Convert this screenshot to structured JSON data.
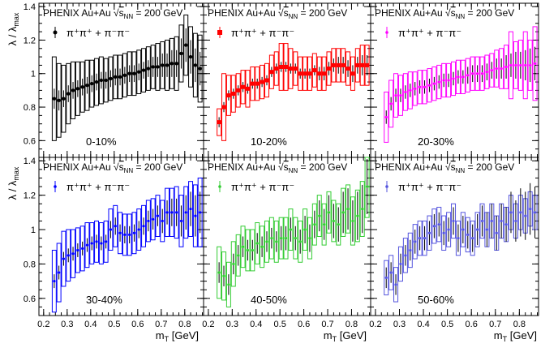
{
  "y_axis_label": "λ / λ",
  "y_axis_label_sub": "max",
  "x_axis_label": "m",
  "x_axis_label_sub": "T",
  "x_axis_unit": " [GeV]",
  "legend_experiment": "PHENIX Au+Au",
  "legend_energy_prefix": "s",
  "legend_energy_sub": "NN",
  "legend_energy_value": " = 200 GeV",
  "legend_series": "π⁺π⁺ + π⁻π⁻",
  "chart_data": [
    {
      "type": "scatter",
      "panel": "0-10%",
      "color": "#000000",
      "marker": "circle",
      "xlim": [
        0.18,
        0.88
      ],
      "ylim": [
        0.5,
        1.42
      ],
      "x": [
        0.245,
        0.265,
        0.285,
        0.305,
        0.325,
        0.345,
        0.365,
        0.385,
        0.405,
        0.425,
        0.445,
        0.465,
        0.485,
        0.505,
        0.525,
        0.545,
        0.565,
        0.585,
        0.605,
        0.625,
        0.645,
        0.665,
        0.685,
        0.705,
        0.725,
        0.745,
        0.765,
        0.785,
        0.805,
        0.825,
        0.845,
        0.865
      ],
      "y": [
        0.85,
        0.84,
        0.85,
        0.88,
        0.9,
        0.91,
        0.92,
        0.93,
        0.94,
        0.95,
        0.96,
        0.96,
        0.97,
        0.98,
        0.98,
        0.99,
        1.0,
        1.0,
        1.01,
        1.02,
        1.03,
        1.04,
        1.04,
        1.05,
        1.05,
        1.06,
        1.06,
        1.12,
        1.17,
        1.1,
        1.05,
        1.03
      ],
      "stat_err": [
        0.06,
        0.06,
        0.05,
        0.05,
        0.05,
        0.05,
        0.05,
        0.05,
        0.05,
        0.05,
        0.05,
        0.05,
        0.05,
        0.05,
        0.05,
        0.05,
        0.05,
        0.05,
        0.05,
        0.05,
        0.05,
        0.06,
        0.06,
        0.07,
        0.07,
        0.08,
        0.08,
        0.09,
        0.1,
        0.1,
        0.1,
        0.1
      ],
      "sys_err": [
        0.25,
        0.22,
        0.2,
        0.18,
        0.17,
        0.16,
        0.15,
        0.15,
        0.14,
        0.14,
        0.14,
        0.13,
        0.13,
        0.13,
        0.13,
        0.13,
        0.13,
        0.13,
        0.13,
        0.13,
        0.13,
        0.13,
        0.14,
        0.14,
        0.15,
        0.15,
        0.16,
        0.17,
        0.18,
        0.18,
        0.19,
        0.2
      ]
    },
    {
      "type": "scatter",
      "panel": "10-20%",
      "color": "#ff0000",
      "marker": "square",
      "xlim": [
        0.18,
        0.88
      ],
      "ylim": [
        0.5,
        1.42
      ],
      "x": [
        0.245,
        0.265,
        0.285,
        0.305,
        0.325,
        0.345,
        0.365,
        0.385,
        0.405,
        0.425,
        0.445,
        0.465,
        0.485,
        0.505,
        0.525,
        0.545,
        0.565,
        0.585,
        0.605,
        0.625,
        0.645,
        0.665,
        0.685,
        0.705,
        0.725,
        0.745,
        0.765,
        0.785,
        0.805,
        0.825,
        0.845,
        0.865
      ],
      "y": [
        0.71,
        0.8,
        0.87,
        0.88,
        0.9,
        0.92,
        0.91,
        0.94,
        0.94,
        0.95,
        0.96,
        1.01,
        1.03,
        1.04,
        1.04,
        1.03,
        1.03,
        1.0,
        1.0,
        1.0,
        1.02,
        1.0,
        1.0,
        1.03,
        1.05,
        1.05,
        1.05,
        1.03,
        1.0,
        1.05,
        1.05,
        1.05
      ],
      "stat_err": [
        0.03,
        0.03,
        0.03,
        0.03,
        0.03,
        0.03,
        0.03,
        0.03,
        0.03,
        0.03,
        0.03,
        0.03,
        0.03,
        0.03,
        0.03,
        0.03,
        0.03,
        0.03,
        0.03,
        0.03,
        0.03,
        0.04,
        0.04,
        0.04,
        0.04,
        0.05,
        0.05,
        0.05,
        0.05,
        0.05,
        0.06,
        0.06
      ],
      "sys_err": [
        0.08,
        0.2,
        0.12,
        0.11,
        0.1,
        0.1,
        0.11,
        0.1,
        0.1,
        0.1,
        0.1,
        0.1,
        0.1,
        0.14,
        0.14,
        0.12,
        0.1,
        0.1,
        0.1,
        0.1,
        0.1,
        0.1,
        0.1,
        0.1,
        0.1,
        0.1,
        0.1,
        0.1,
        0.1,
        0.1,
        0.12,
        0.12
      ]
    },
    {
      "type": "scatter",
      "panel": "20-30%",
      "color": "#ff00ff",
      "marker": "circle-open",
      "xlim": [
        0.18,
        0.88
      ],
      "ylim": [
        0.5,
        1.42
      ],
      "x": [
        0.245,
        0.265,
        0.285,
        0.305,
        0.325,
        0.345,
        0.365,
        0.385,
        0.405,
        0.425,
        0.445,
        0.465,
        0.485,
        0.505,
        0.525,
        0.545,
        0.565,
        0.585,
        0.605,
        0.625,
        0.645,
        0.665,
        0.685,
        0.705,
        0.725,
        0.745,
        0.765,
        0.785,
        0.805,
        0.825,
        0.845,
        0.865
      ],
      "y": [
        0.74,
        0.82,
        0.87,
        0.87,
        0.89,
        0.9,
        0.91,
        0.92,
        0.92,
        0.93,
        0.94,
        0.95,
        0.96,
        0.96,
        0.97,
        0.98,
        0.98,
        0.99,
        1.0,
        1.0,
        1.0,
        1.01,
        1.02,
        1.03,
        1.03,
        1.04,
        1.05,
        1.05,
        1.05,
        1.05,
        1.05,
        1.06
      ],
      "stat_err": [
        0.04,
        0.04,
        0.04,
        0.04,
        0.04,
        0.04,
        0.04,
        0.04,
        0.04,
        0.04,
        0.04,
        0.04,
        0.04,
        0.04,
        0.04,
        0.04,
        0.04,
        0.05,
        0.05,
        0.05,
        0.05,
        0.05,
        0.05,
        0.06,
        0.06,
        0.07,
        0.07,
        0.08,
        0.08,
        0.09,
        0.1,
        0.1
      ],
      "sys_err": [
        0.15,
        0.14,
        0.13,
        0.12,
        0.11,
        0.11,
        0.1,
        0.1,
        0.1,
        0.1,
        0.1,
        0.1,
        0.1,
        0.1,
        0.1,
        0.1,
        0.1,
        0.1,
        0.1,
        0.1,
        0.1,
        0.1,
        0.1,
        0.11,
        0.12,
        0.13,
        0.2,
        0.14,
        0.15,
        0.2,
        0.15,
        0.22
      ]
    },
    {
      "type": "scatter",
      "panel": "30-40%",
      "color": "#0000ff",
      "marker": "circle-open",
      "xlim": [
        0.18,
        0.88
      ],
      "ylim": [
        0.5,
        1.42
      ],
      "x": [
        0.245,
        0.265,
        0.285,
        0.305,
        0.325,
        0.345,
        0.365,
        0.385,
        0.405,
        0.425,
        0.445,
        0.465,
        0.485,
        0.505,
        0.525,
        0.545,
        0.565,
        0.585,
        0.605,
        0.625,
        0.645,
        0.665,
        0.685,
        0.705,
        0.725,
        0.745,
        0.765,
        0.785,
        0.805,
        0.825,
        0.845,
        0.865
      ],
      "y": [
        0.7,
        0.75,
        0.83,
        0.85,
        0.86,
        0.88,
        0.89,
        0.91,
        0.92,
        0.93,
        0.92,
        0.93,
        1.0,
        1.02,
        0.98,
        0.97,
        0.97,
        0.98,
        1.0,
        1.02,
        1.05,
        1.06,
        1.08,
        1.05,
        1.1,
        1.1,
        1.1,
        1.05,
        1.1,
        1.12,
        1.08,
        1.1
      ],
      "stat_err": [
        0.04,
        0.04,
        0.04,
        0.04,
        0.04,
        0.04,
        0.04,
        0.04,
        0.04,
        0.04,
        0.04,
        0.04,
        0.05,
        0.05,
        0.05,
        0.05,
        0.05,
        0.05,
        0.05,
        0.05,
        0.06,
        0.06,
        0.06,
        0.07,
        0.07,
        0.08,
        0.08,
        0.09,
        0.1,
        0.1,
        0.12,
        0.12
      ],
      "sys_err": [
        0.18,
        0.17,
        0.16,
        0.15,
        0.14,
        0.13,
        0.13,
        0.13,
        0.12,
        0.12,
        0.12,
        0.12,
        0.12,
        0.12,
        0.12,
        0.12,
        0.12,
        0.12,
        0.12,
        0.12,
        0.12,
        0.12,
        0.12,
        0.12,
        0.14,
        0.14,
        0.15,
        0.15,
        0.15,
        0.16,
        0.18,
        0.2
      ]
    },
    {
      "type": "scatter",
      "panel": "40-50%",
      "color": "#33cc33",
      "marker": "circle-open",
      "xlim": [
        0.18,
        0.88
      ],
      "ylim": [
        0.5,
        1.42
      ],
      "x": [
        0.245,
        0.265,
        0.285,
        0.305,
        0.325,
        0.345,
        0.365,
        0.385,
        0.405,
        0.425,
        0.445,
        0.465,
        0.485,
        0.505,
        0.525,
        0.545,
        0.565,
        0.585,
        0.605,
        0.625,
        0.645,
        0.665,
        0.685,
        0.705,
        0.725,
        0.745,
        0.765,
        0.785,
        0.805,
        0.825,
        0.845,
        0.865
      ],
      "y": [
        0.75,
        0.73,
        0.68,
        0.8,
        0.85,
        0.9,
        0.88,
        0.88,
        0.92,
        0.9,
        0.93,
        0.95,
        0.93,
        0.95,
        0.95,
        1.0,
        0.95,
        0.93,
        1.0,
        0.95,
        1.03,
        1.08,
        1.03,
        1.1,
        1.05,
        1.03,
        1.1,
        1.12,
        1.05,
        1.08,
        1.12,
        1.25
      ],
      "stat_err": [
        0.06,
        0.06,
        0.06,
        0.06,
        0.06,
        0.06,
        0.06,
        0.06,
        0.06,
        0.06,
        0.06,
        0.06,
        0.06,
        0.07,
        0.07,
        0.07,
        0.07,
        0.07,
        0.08,
        0.08,
        0.08,
        0.09,
        0.09,
        0.1,
        0.1,
        0.1,
        0.12,
        0.12,
        0.12,
        0.14,
        0.14,
        0.16
      ],
      "sys_err": [
        0.15,
        0.14,
        0.13,
        0.13,
        0.12,
        0.12,
        0.12,
        0.12,
        0.12,
        0.12,
        0.12,
        0.12,
        0.12,
        0.12,
        0.12,
        0.12,
        0.12,
        0.12,
        0.12,
        0.12,
        0.12,
        0.12,
        0.12,
        0.12,
        0.12,
        0.12,
        0.14,
        0.14,
        0.14,
        0.15,
        0.16,
        0.18
      ]
    },
    {
      "type": "scatter",
      "panel": "50-60%",
      "color": "#5555dd",
      "marker": "circle-open",
      "xlim": [
        0.18,
        0.88
      ],
      "ylim": [
        0.5,
        1.42
      ],
      "x": [
        0.245,
        0.265,
        0.285,
        0.305,
        0.325,
        0.345,
        0.365,
        0.385,
        0.405,
        0.425,
        0.445,
        0.465,
        0.485,
        0.505,
        0.525,
        0.545,
        0.565,
        0.585,
        0.605,
        0.625,
        0.645,
        0.665,
        0.685,
        0.705,
        0.725,
        0.745,
        0.765,
        0.785,
        0.805,
        0.825,
        0.845,
        0.865
      ],
      "y": [
        0.72,
        0.75,
        0.68,
        0.8,
        0.85,
        0.88,
        0.93,
        0.95,
        0.95,
        0.98,
        1.02,
        1.03,
        0.98,
        1.0,
        1.05,
        0.95,
        1.0,
        0.97,
        0.95,
        1.0,
        1.05,
        1.0,
        1.05,
        0.98,
        1.05,
        1.03,
        1.1,
        1.05,
        1.1,
        1.08,
        1.12,
        1.1
      ],
      "stat_err": [
        0.06,
        0.06,
        0.06,
        0.06,
        0.06,
        0.06,
        0.07,
        0.07,
        0.07,
        0.07,
        0.07,
        0.07,
        0.07,
        0.07,
        0.08,
        0.08,
        0.08,
        0.08,
        0.08,
        0.09,
        0.09,
        0.1,
        0.1,
        0.1,
        0.1,
        0.1,
        0.12,
        0.12,
        0.14,
        0.14,
        0.15,
        0.15
      ],
      "sys_err": [
        0.1,
        0.1,
        0.1,
        0.1,
        0.1,
        0.1,
        0.1,
        0.1,
        0.1,
        0.1,
        0.1,
        0.1,
        0.1,
        0.1,
        0.1,
        0.1,
        0.1,
        0.1,
        0.1,
        0.1,
        0.1,
        0.1,
        0.1,
        0.1,
        0.1,
        0.1,
        0.1,
        0.1,
        0.1,
        0.1,
        0.1,
        0.1
      ]
    }
  ],
  "y_ticks": [
    "0.6",
    "0.8",
    "1",
    "1.2",
    "1.4"
  ],
  "x_ticks": [
    "0.2",
    "0.3",
    "0.4",
    "0.5",
    "0.6",
    "0.7",
    "0.8"
  ]
}
